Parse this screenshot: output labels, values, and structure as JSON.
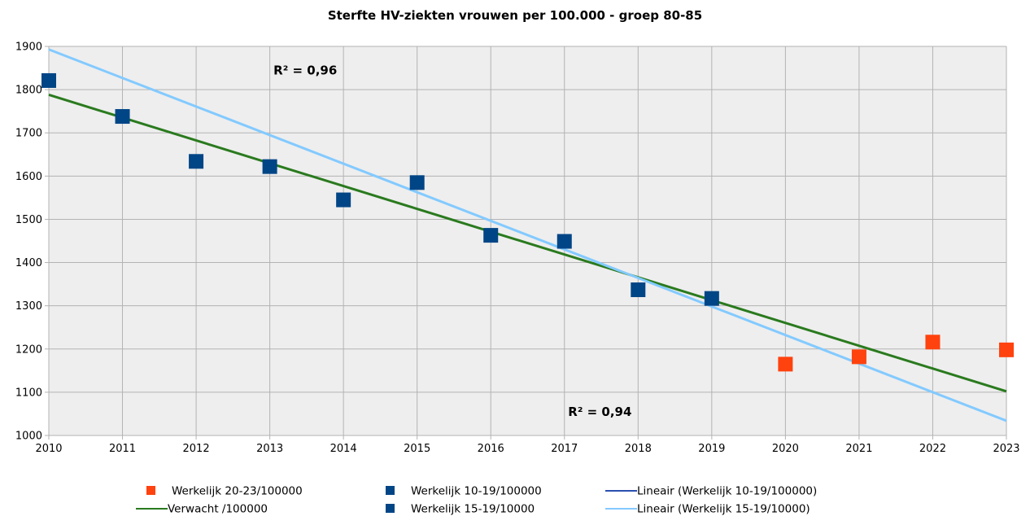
{
  "chart_data": {
    "type": "scatter",
    "title": "Sterfte HV-ziekten vrouwen per 100.000 - groep 80-85",
    "xlabel": "",
    "ylabel": "",
    "x_ticks": [
      2010,
      2011,
      2012,
      2013,
      2014,
      2015,
      2016,
      2017,
      2018,
      2019,
      2020,
      2021,
      2022,
      2023
    ],
    "xlim": [
      2010,
      2023
    ],
    "ylim": [
      1000,
      1900
    ],
    "y_ticks": [
      1000,
      1100,
      1200,
      1300,
      1400,
      1500,
      1600,
      1700,
      1800,
      1900
    ],
    "grid": true,
    "legend_position": "bottom",
    "colors": {
      "plot_bg": "#eeeeee",
      "grid": "#b3b3b3",
      "actual_20_23": "#ff420e",
      "actual_10_19": "#004586",
      "actual_15_19": "#004586",
      "expected": "#2a7a1e",
      "trend_10_19": "#2a4fb0",
      "trend_15_19": "#83caff"
    },
    "series": [
      {
        "name": "Werkelijk 20-23/100000",
        "kind": "marker",
        "color": "#ff420e",
        "points": [
          {
            "x": 2020,
            "y": 1165
          },
          {
            "x": 2021,
            "y": 1182
          },
          {
            "x": 2022,
            "y": 1216
          },
          {
            "x": 2023,
            "y": 1198
          }
        ]
      },
      {
        "name": "Verwacht /100000",
        "kind": "line",
        "color": "#2a7a1e",
        "points": [
          {
            "x": 2010,
            "y": 1788
          },
          {
            "x": 2023,
            "y": 1102
          }
        ]
      },
      {
        "name": "Werkelijk 10-19/100000",
        "kind": "marker",
        "color": "#004586",
        "points": [
          {
            "x": 2010,
            "y": 1821
          },
          {
            "x": 2011,
            "y": 1738
          },
          {
            "x": 2012,
            "y": 1634
          },
          {
            "x": 2013,
            "y": 1622
          },
          {
            "x": 2014,
            "y": 1545
          },
          {
            "x": 2015,
            "y": 1585
          },
          {
            "x": 2016,
            "y": 1463
          },
          {
            "x": 2017,
            "y": 1449
          },
          {
            "x": 2018,
            "y": 1337
          },
          {
            "x": 2019,
            "y": 1317
          }
        ]
      },
      {
        "name": "Werkelijk 15-19/10000",
        "kind": "marker",
        "color": "#004586",
        "points": []
      },
      {
        "name": "Lineair (Werkelijk 10-19/100000)",
        "kind": "line",
        "color": "#2a4fb0",
        "points": []
      },
      {
        "name": "Lineair (Werkelijk 15-19/10000)",
        "kind": "line",
        "color": "#83caff",
        "points": [
          {
            "x": 2010,
            "y": 1893
          },
          {
            "x": 2023,
            "y": 1034
          }
        ]
      }
    ],
    "legend": [
      {
        "label": "Werkelijk 20-23/100000",
        "symbol": "square",
        "color": "#ff420e"
      },
      {
        "label": "Werkelijk 10-19/100000",
        "symbol": "square",
        "color": "#004586"
      },
      {
        "label": "Lineair (Werkelijk 10-19/100000)",
        "symbol": "line",
        "color": "#2a4fb0"
      },
      {
        "label": "Verwacht /100000",
        "symbol": "line",
        "color": "#2a7a1e"
      },
      {
        "label": "Werkelijk 15-19/10000",
        "symbol": "square",
        "color": "#004586"
      },
      {
        "label": "Lineair (Werkelijk 15-19/10000)",
        "symbol": "line",
        "color": "#83caff"
      }
    ],
    "annotations": [
      {
        "text": "R² = 0,96",
        "x": 2013.05,
        "y": 1835
      },
      {
        "text": "R² = 0,94",
        "x": 2017.05,
        "y": 1045
      }
    ]
  }
}
